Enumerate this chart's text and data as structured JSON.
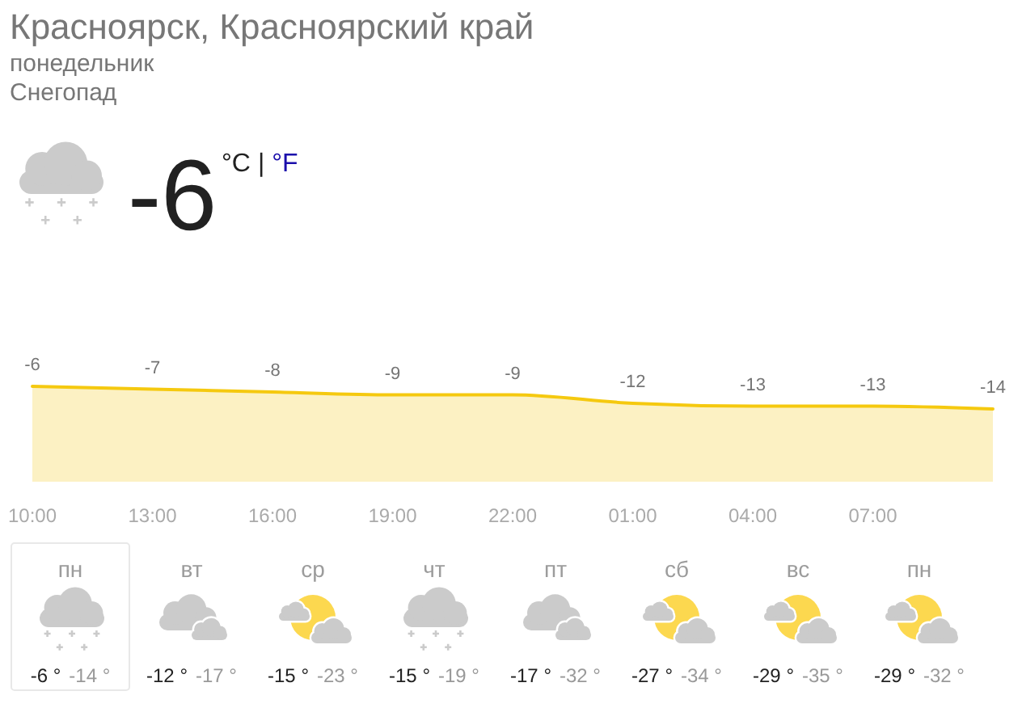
{
  "chart_data": [
    {
      "type": "other",
      "title": "Красноярск, Красноярский край",
      "subtitle": "понедельник",
      "annotations": [
        "Снегопад",
        "-6",
        "°C",
        "|",
        "°F"
      ]
    },
    {
      "type": "area",
      "categories": [
        "10:00",
        "13:00",
        "16:00",
        "19:00",
        "22:00",
        "01:00",
        "04:00",
        "07:00",
        null
      ],
      "values": [
        -6,
        -7,
        -8,
        -9,
        -9,
        -12,
        -13,
        -13,
        -14
      ],
      "color": "#f5c90f",
      "data_labels": true,
      "tick_labels": "x"
    },
    {
      "type": "other",
      "categories": [
        "пн",
        "вт",
        "ср",
        "чт",
        "пт",
        "сб",
        "вс",
        "пн"
      ],
      "series": [
        {
          "color": "#222222",
          "values": [
            -6,
            -12,
            -15,
            -15,
            -17,
            -27,
            -29,
            -29
          ],
          "value_labels": [
            "-6 °",
            "-12 °",
            "-15 °",
            "-15 °",
            "-17 °",
            "-27 °",
            "-29 °",
            "-29 °"
          ]
        },
        {
          "color": "#999999",
          "values": [
            -14,
            -17,
            -23,
            -19,
            -32,
            -34,
            -35,
            -32
          ],
          "value_labels": [
            "-14 °",
            "-17 °",
            "-23 °",
            "-19 °",
            "-32 °",
            "-34 °",
            "-35 °",
            "-32 °"
          ]
        }
      ]
    }
  ]
}
